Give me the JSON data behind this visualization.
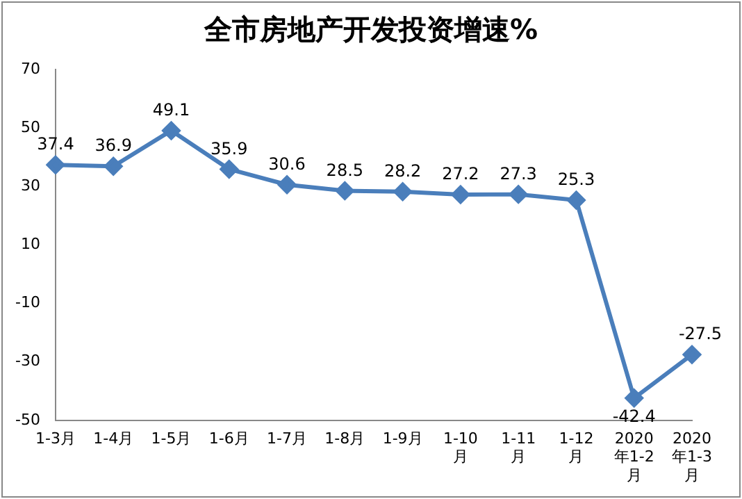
{
  "chart_data": {
    "type": "line",
    "title": "全市房地产开发投资增速%",
    "categories": [
      "1-3月",
      "1-4月",
      "1-5月",
      "1-6月",
      "1-7月",
      "1-8月",
      "1-9月",
      "1-10月",
      "1-11月",
      "1-12月",
      "2020年1-2月",
      "2020年1-3月"
    ],
    "series": [
      {
        "color": "#4a7ebb",
        "values": [
          37.4,
          36.9,
          49.1,
          35.9,
          30.6,
          28.5,
          28.2,
          27.2,
          27.3,
          25.3,
          -42.4,
          -27.5
        ]
      }
    ],
    "ylim": [
      -50,
      70
    ],
    "yticks": [
      -50,
      -30,
      -10,
      10,
      30,
      50,
      70
    ],
    "grid": false,
    "legend": false,
    "marker": "diamond",
    "line_style": "solid",
    "data_labels": true
  }
}
